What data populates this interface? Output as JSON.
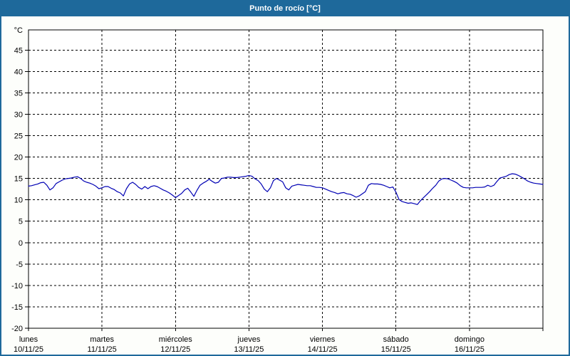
{
  "title": {
    "text": "Punto de rocío [°C]"
  },
  "colors": {
    "accent": "#1e699b",
    "line": "#0000b4",
    "grid": "#000000",
    "plot_background": "#ffffff",
    "window_background": "#fdfefb",
    "title_text": "#ffffff"
  },
  "chart_data": {
    "type": "line",
    "title": "Punto de rocío [°C]",
    "xlabel": "",
    "ylabel": "°C",
    "unit_label": "°C",
    "ylim": [
      -20,
      49.7
    ],
    "yticks": [
      45,
      40,
      35,
      30,
      25,
      20,
      15,
      10,
      5,
      0,
      -5,
      -10,
      -15,
      -20
    ],
    "grid": true,
    "legend_position": "none",
    "x_unit": "hours",
    "days": [
      {
        "name": "lunes",
        "date": "10/11/25"
      },
      {
        "name": "martes",
        "date": "11/11/25"
      },
      {
        "name": "miércoles",
        "date": "12/11/25"
      },
      {
        "name": "jueves",
        "date": "13/11/25"
      },
      {
        "name": "viernes",
        "date": "14/11/25"
      },
      {
        "name": "sábado",
        "date": "15/11/25"
      },
      {
        "name": "domingo",
        "date": "16/11/25"
      }
    ],
    "series": [
      {
        "name": "Punto de rocío",
        "color": "#0000b4",
        "values": [
          13.2,
          13.3,
          13.5,
          13.7,
          14.0,
          14.1,
          13.4,
          12.3,
          12.8,
          13.8,
          14.2,
          14.6,
          14.9,
          15.0,
          15.1,
          15.3,
          15.4,
          15.0,
          14.4,
          14.1,
          13.9,
          13.6,
          13.2,
          12.6,
          12.8,
          13.1,
          13.1,
          12.7,
          12.4,
          11.9,
          11.6,
          10.9,
          12.6,
          13.7,
          14.1,
          13.6,
          12.9,
          12.5,
          13.1,
          12.6,
          13.1,
          13.3,
          13.1,
          12.7,
          12.3,
          12.0,
          11.6,
          11.1,
          10.5,
          11.0,
          11.5,
          12.3,
          12.7,
          11.8,
          10.8,
          12.2,
          13.4,
          13.9,
          14.3,
          14.8,
          14.3,
          13.9,
          14.1,
          15.0,
          15.1,
          15.3,
          15.3,
          15.2,
          15.2,
          15.3,
          15.4,
          15.5,
          15.7,
          15.5,
          14.9,
          14.5,
          13.7,
          12.5,
          11.9,
          12.8,
          14.5,
          15.0,
          14.6,
          14.2,
          12.8,
          12.3,
          13.2,
          13.4,
          13.6,
          13.5,
          13.4,
          13.3,
          13.3,
          13.1,
          12.9,
          12.9,
          12.8,
          12.5,
          12.2,
          11.9,
          11.7,
          11.4,
          11.6,
          11.7,
          11.4,
          11.3,
          11.0,
          10.6,
          10.9,
          11.4,
          11.9,
          13.4,
          13.8,
          13.7,
          13.7,
          13.6,
          13.4,
          13.1,
          12.8,
          13.0,
          11.8,
          10.1,
          9.6,
          9.4,
          9.2,
          9.3,
          9.1,
          8.9,
          9.8,
          10.5,
          11.2,
          11.9,
          12.7,
          13.4,
          14.4,
          14.9,
          15.0,
          14.9,
          14.6,
          14.3,
          13.9,
          13.3,
          12.9,
          12.8,
          12.8,
          12.8,
          12.9,
          12.9,
          12.9,
          13.0,
          13.4,
          13.1,
          13.4,
          14.3,
          15.1,
          15.3,
          15.5,
          15.9,
          16.1,
          16.0,
          15.7,
          15.3,
          14.9,
          14.4,
          14.1,
          13.9,
          13.8,
          13.7,
          13.6
        ]
      }
    ]
  }
}
